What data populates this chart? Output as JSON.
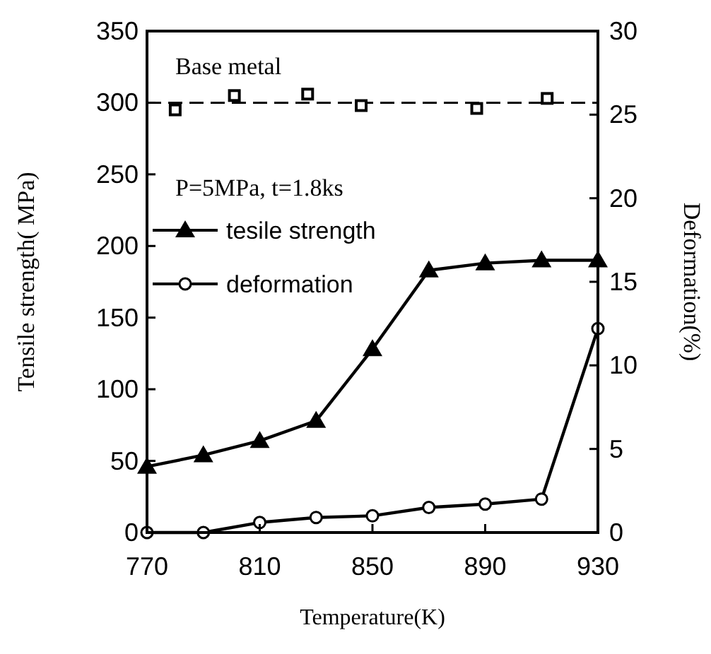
{
  "chart_data": {
    "type": "line",
    "xlabel": "Temperature(K)",
    "ylabel": "Tensile strength( MPa)",
    "y2label": "Deformation(%)",
    "x": [
      770,
      790,
      810,
      830,
      850,
      870,
      890,
      910,
      930
    ],
    "series": [
      {
        "name": "tesile strength",
        "color": "#000000",
        "marker": "triangle",
        "values": [
          46,
          54,
          64,
          78,
          128,
          183,
          188,
          190,
          190
        ]
      },
      {
        "name": "deformation",
        "color": "#000000",
        "marker": "circle",
        "axis": "y2",
        "values": [
          0,
          0,
          0.6,
          0.9,
          1.0,
          1.5,
          1.7,
          2.0,
          12.2
        ]
      },
      {
        "type": "scatter",
        "color": "#000000",
        "marker": "square",
        "x": [
          780,
          801,
          827,
          846,
          887,
          912
        ],
        "values": [
          295,
          305,
          306,
          298,
          296,
          303
        ]
      }
    ],
    "xlim": [
      770,
      930
    ],
    "xticks": [
      770,
      810,
      850,
      890,
      930
    ],
    "ylim": [
      0,
      350
    ],
    "yticks": [
      0,
      50,
      100,
      150,
      200,
      250,
      300,
      350
    ],
    "y2lim": [
      0,
      30
    ],
    "y2ticks": [
      0,
      5,
      10,
      15,
      20,
      25,
      30
    ],
    "ref_lines": [
      {
        "axis": "y",
        "value": 300,
        "label": "Base metal",
        "line_style": "dashed"
      }
    ],
    "annotations": [
      "P=5MPa,  t=1.8ks"
    ],
    "legend": "top left",
    "line_style": "solid",
    "grid": false
  }
}
